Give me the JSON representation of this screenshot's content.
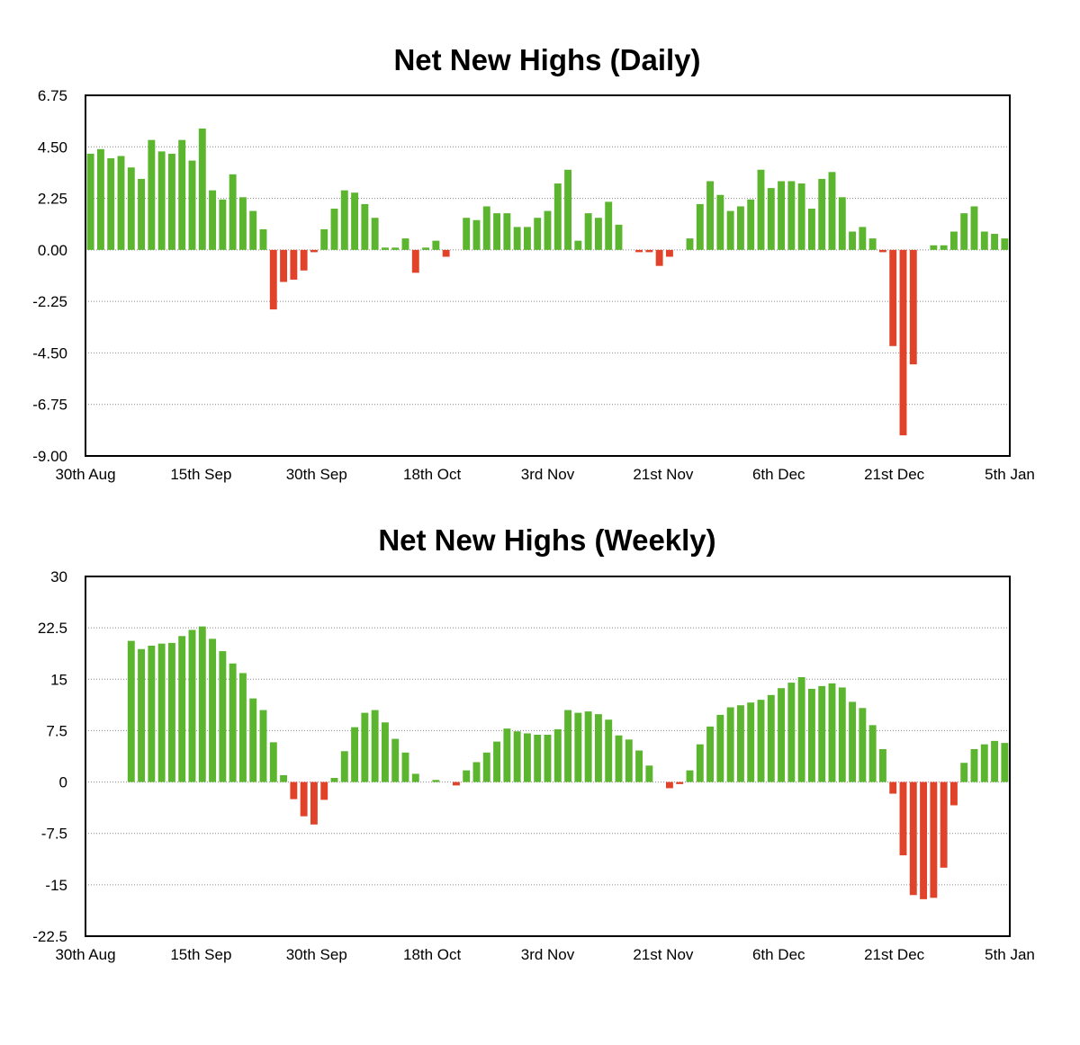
{
  "chart_data": [
    {
      "type": "bar",
      "title": "Net New Highs (Daily)",
      "xlabel": "",
      "ylabel": "",
      "ylim": [
        -9,
        6.75
      ],
      "yticks": [
        "6.75",
        "4.50",
        "2.25",
        "0.00",
        "-2.25",
        "-4.50",
        "-6.75",
        "-9.00"
      ],
      "xticks": [
        "30th Aug",
        "15th Sep",
        "30th Sep",
        "18th Oct",
        "3rd Nov",
        "21st Nov",
        "6th Dec",
        "21st Dec",
        "5th Jan"
      ],
      "grid": true,
      "colors": {
        "positive": "#5cb52f",
        "negative": "#e0432a"
      },
      "values": [
        4.2,
        4.4,
        4.0,
        4.1,
        3.6,
        3.1,
        4.8,
        4.3,
        4.2,
        4.8,
        3.9,
        5.3,
        2.6,
        2.2,
        3.3,
        2.3,
        1.7,
        0.9,
        -2.6,
        -1.4,
        -1.3,
        -0.9,
        -0.1,
        0.9,
        1.8,
        2.6,
        2.5,
        2.0,
        1.4,
        0.1,
        0.1,
        0.5,
        -1.0,
        0.1,
        0.4,
        -0.3,
        0.0,
        1.4,
        1.3,
        1.9,
        1.6,
        1.6,
        1.0,
        1.0,
        1.4,
        1.7,
        2.9,
        3.5,
        0.4,
        1.6,
        1.4,
        2.1,
        1.1,
        0.0,
        -0.1,
        -0.1,
        -0.7,
        -0.3,
        0.0,
        0.5,
        2.0,
        3.0,
        2.4,
        1.7,
        1.9,
        2.2,
        3.5,
        2.7,
        3.0,
        3.0,
        2.9,
        1.8,
        3.1,
        3.4,
        2.3,
        0.8,
        1.0,
        0.5,
        -0.1,
        -4.2,
        -8.1,
        -5.0,
        0.0,
        0.2,
        0.2,
        0.8,
        1.6,
        1.9,
        0.8,
        0.7,
        0.5
      ]
    },
    {
      "type": "bar",
      "title": "Net New Highs (Weekly)",
      "xlabel": "",
      "ylabel": "",
      "ylim": [
        -22.5,
        30
      ],
      "yticks": [
        "30",
        "22.5",
        "15",
        "7.5",
        "0",
        "-7.5",
        "-15",
        "-22.5"
      ],
      "xticks": [
        "30th Aug",
        "15th Sep",
        "30th Sep",
        "18th Oct",
        "3rd Nov",
        "21st Nov",
        "6th Dec",
        "21st Dec",
        "5th Jan"
      ],
      "grid": true,
      "colors": {
        "positive": "#5cb52f",
        "negative": "#e0432a"
      },
      "values": [
        0,
        0,
        0,
        0,
        20.6,
        19.4,
        19.9,
        20.2,
        20.3,
        21.3,
        22.2,
        22.7,
        20.9,
        19.1,
        17.3,
        15.9,
        12.2,
        10.5,
        5.8,
        1.0,
        -2.5,
        -5.0,
        -6.2,
        -2.6,
        0.6,
        4.5,
        8.0,
        10.1,
        10.5,
        8.7,
        6.3,
        4.3,
        1.2,
        0.0,
        0.3,
        0.0,
        -0.5,
        1.7,
        2.9,
        4.3,
        5.9,
        7.8,
        7.4,
        7.1,
        6.9,
        6.9,
        7.7,
        10.5,
        10.1,
        10.3,
        9.9,
        9.1,
        6.8,
        6.2,
        4.6,
        2.4,
        0.0,
        -0.9,
        -0.3,
        1.7,
        5.5,
        8.1,
        9.8,
        10.9,
        11.2,
        11.6,
        12.0,
        12.7,
        13.7,
        14.5,
        15.3,
        13.6,
        14.0,
        14.4,
        13.8,
        11.7,
        10.8,
        8.3,
        4.8,
        -1.7,
        -10.7,
        -16.5,
        -17.1,
        -16.9,
        -12.5,
        -3.4,
        2.8,
        4.8,
        5.5,
        6.0,
        5.7
      ]
    }
  ]
}
